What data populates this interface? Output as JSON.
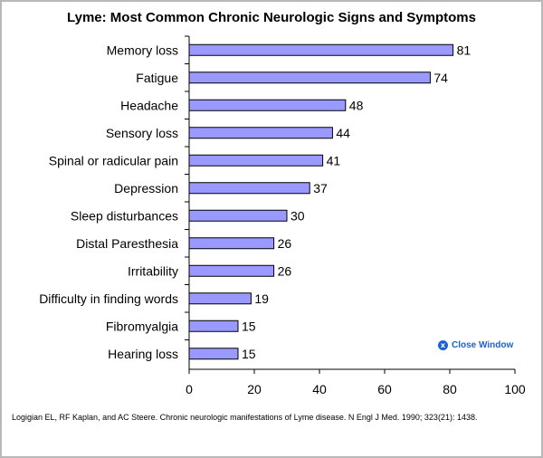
{
  "chart_data": {
    "type": "bar",
    "orientation": "horizontal",
    "title": "Lyme: Most Common Chronic Neurologic Signs and Symptoms",
    "categories": [
      "Memory loss",
      "Fatigue",
      "Headache",
      "Sensory loss",
      "Spinal or radicular pain",
      "Depression",
      "Sleep disturbances",
      "Distal Paresthesia",
      "Irritability",
      "Difficulty in finding words",
      "Fibromyalgia",
      "Hearing loss"
    ],
    "values": [
      81,
      74,
      48,
      44,
      41,
      37,
      30,
      26,
      26,
      19,
      15,
      15
    ],
    "xlim": [
      0,
      100
    ],
    "xticks": [
      0,
      20,
      40,
      60,
      80,
      100
    ],
    "xlabel": "",
    "ylabel": "",
    "grid": false,
    "bar_color": "#9999ff",
    "bar_edge_color": "#000000"
  },
  "close_window": {
    "label": "Close Window",
    "icon": "x-circle-icon",
    "color": "#1f5fd6"
  },
  "citation": "Logigian EL, RF Kaplan, and AC Steere. Chronic neurologic manifestations of Lyme disease. N Engl J Med. 1990; 323(21): 1438."
}
